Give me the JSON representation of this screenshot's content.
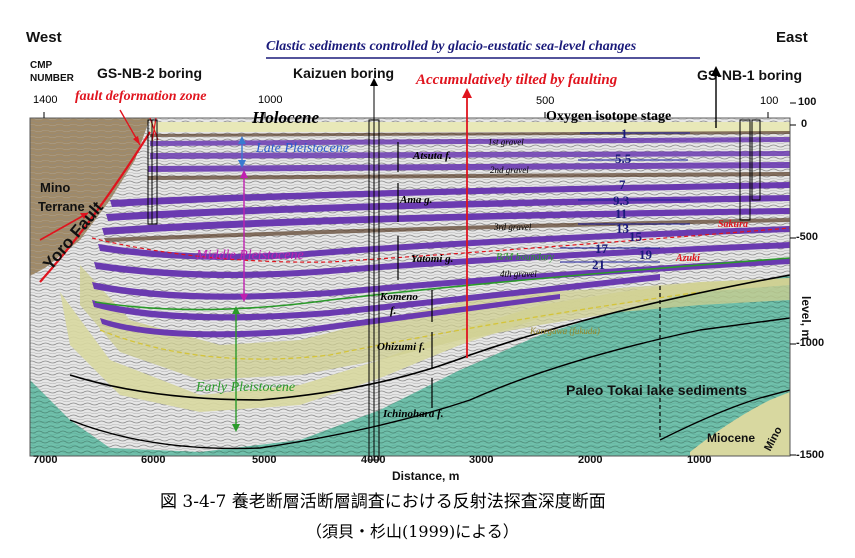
{
  "header": {
    "west": "West",
    "east": "East",
    "cmp_label_1": "CMP",
    "cmp_label_2": "NUMBER",
    "title_clastic": "Clastic sediments controlled by glacio-eustatic sea-level changes",
    "title_tilted": "Accumulatively tilted by faulting"
  },
  "borings": {
    "gs_nb_2": "GS-NB-2 boring",
    "kaizuen": "Kaizuen boring",
    "gs_nb_1": "GS-NB-1 boring"
  },
  "cmp_ticks": [
    "1400",
    "1000",
    "500",
    "100"
  ],
  "depth_ticks": [
    "100",
    "0",
    "-500",
    "-1000",
    "-1500"
  ],
  "depth_axis_label": "level, m",
  "distance_ticks": [
    "7000",
    "6000",
    "5000",
    "4000",
    "3000",
    "2000",
    "1000"
  ],
  "distance_label": "Distance, m",
  "labels": {
    "fault_zone": "fault deformation zone",
    "holocene": "Holocene",
    "oxygen_isotope": "Oxygen isotope stage",
    "late_pleistocene": "Late Pleistocene",
    "middle_pleistocene": "Middle Pleistocene",
    "early_pleistocene": "Early Pleistocene",
    "mino_terrane_1": "Mino",
    "mino_terrane_2": "Terrane",
    "yoro_fault": "Yoro Fault",
    "atsuta": "Atsuta f.",
    "ama": "Ama g.",
    "yatomi": "Yatomi g.",
    "komeno_1": "Komeno",
    "komeno_2": "f.",
    "ohizumi": "Ohizumi f.",
    "ichinohara": "Ichinohara f.",
    "gravel_1": "1st gravel",
    "gravel_2": "2nd gravel",
    "gravel_3": "3rd gravel",
    "gravel_4": "4th gravel",
    "bm_boundary": "B/M boundary",
    "sakura": "Sakura",
    "azuki": "Azuki",
    "karegawa": "Karegawa (fukuda)",
    "paleo_tokai": "Paleo Tokai lake sediments",
    "miocene": "Miocene",
    "mino": "Mino"
  },
  "isotope_stages": [
    "1",
    "5.5",
    "7",
    "9.3",
    "11",
    "13",
    "15",
    "17",
    "19",
    "21"
  ],
  "caption": {
    "line1": "図 3-4-7  養老断層活断層調査における反射法探査深度断面",
    "line2": "（須貝・杉山(1999)による）"
  },
  "colors": {
    "purple": "#6a3ab0",
    "olive": "#d8d8a0",
    "teal": "#5ab8a0",
    "terrane": "#a08a68",
    "red": "#e0141e",
    "navy": "#1a1a7a",
    "green": "#2a9a2a"
  }
}
